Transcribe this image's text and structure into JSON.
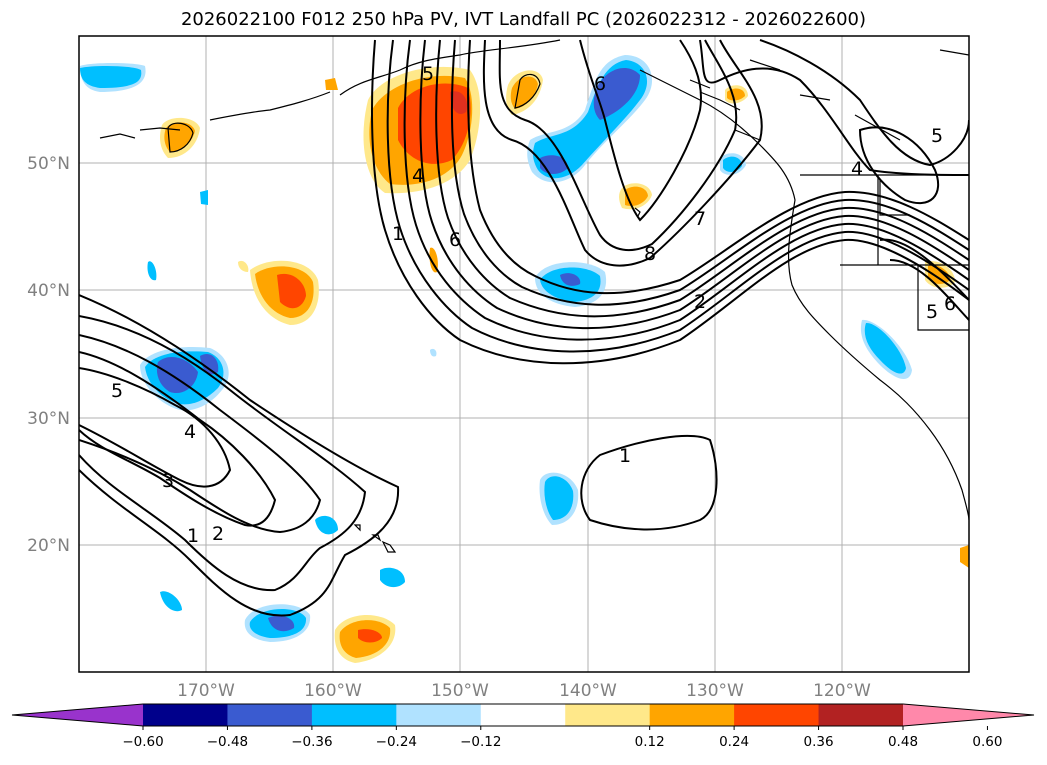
{
  "title": "2026022100 F012 250 hPa PV, IVT Landfall PC (2026022312 - 2026022600)",
  "lat_labels": [
    "50°N",
    "40°N",
    "30°N",
    "20°N"
  ],
  "lon_labels": [
    "170°W",
    "160°W",
    "150°W",
    "140°W",
    "130°W",
    "120°W"
  ],
  "contour_labels": [
    "5",
    "4",
    "1",
    "6",
    "6",
    "8",
    "7",
    "2",
    "5",
    "4",
    "6",
    "5",
    "5",
    "4",
    "3",
    "2",
    "1",
    "1"
  ],
  "colorbar": {
    "ticks": [
      "−0.60",
      "−0.48",
      "−0.36",
      "−0.24",
      "−0.12",
      "0.12",
      "0.24",
      "0.36",
      "0.48",
      "0.60"
    ],
    "colors": [
      "#9933cc",
      "#00008b",
      "#3a5bd0",
      "#00bfff",
      "#b0e2ff",
      "#ffffff",
      "#ffe88a",
      "#ffa500",
      "#ff4500",
      "#b22222",
      "#ff88aa"
    ]
  }
}
